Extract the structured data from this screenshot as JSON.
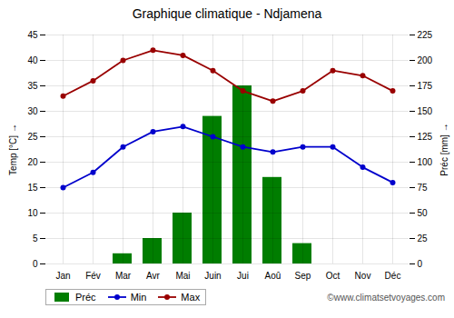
{
  "chart_data": {
    "type": "bar",
    "title": "Graphique climatique - Ndjamena",
    "categories": [
      "Jan",
      "Fév",
      "Mar",
      "Avr",
      "Mai",
      "Juin",
      "Jui",
      "Aoû",
      "Sep",
      "Oct",
      "Nov",
      "Déc"
    ],
    "series": [
      {
        "name": "Préc",
        "type": "bar",
        "axis": "y2",
        "color": "#007d00",
        "values": [
          0,
          0,
          10,
          25,
          50,
          145,
          175,
          85,
          20,
          0,
          0,
          0
        ]
      },
      {
        "name": "Min",
        "type": "line",
        "marker": "circle",
        "color": "#0000cc",
        "values": [
          15,
          18,
          23,
          26,
          27,
          25,
          23,
          22,
          23,
          23,
          19,
          16
        ]
      },
      {
        "name": "Max",
        "type": "line",
        "marker": "circle",
        "color": "#990000",
        "values": [
          33,
          36,
          40,
          42,
          41,
          38,
          34,
          32,
          34,
          38,
          37,
          34
        ]
      }
    ],
    "ylabel": "Temp [°C]",
    "y2label": "Préc [mm]",
    "ylim": [
      0,
      45
    ],
    "yticks": [
      0,
      5,
      10,
      15,
      20,
      25,
      30,
      35,
      40,
      45
    ],
    "y2lim": [
      0,
      225
    ],
    "y2ticks": [
      0,
      25,
      50,
      75,
      100,
      125,
      150,
      175,
      200,
      225
    ],
    "grid": true,
    "legend": "lower left",
    "annotations": [
      "©www.climatsetvoyages.com"
    ]
  }
}
